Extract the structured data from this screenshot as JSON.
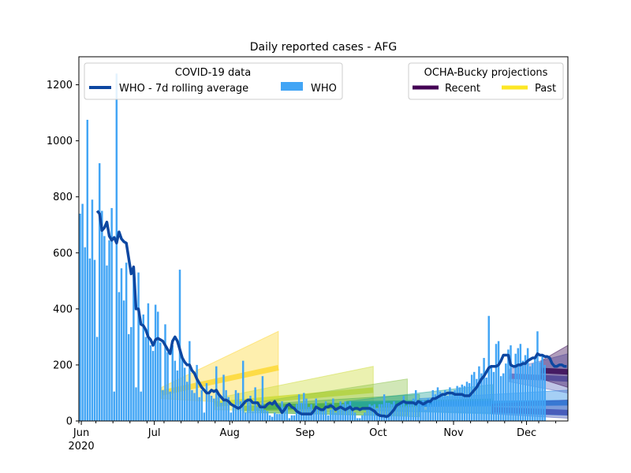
{
  "chart_data": {
    "type": "bar",
    "title": "Daily reported cases - AFG",
    "xlabel": "",
    "ylabel": "",
    "ylim": [
      0,
      1300
    ],
    "yticks": [
      0,
      200,
      400,
      600,
      800,
      1000,
      1200
    ],
    "xlim": [
      "2020-05-31",
      "2020-12-18"
    ],
    "xticks": [
      {
        "date": "2020-06-01",
        "label": "Jun",
        "sublabel": "2020"
      },
      {
        "date": "2020-07-01",
        "label": "Jul",
        "sublabel": ""
      },
      {
        "date": "2020-08-01",
        "label": "Aug",
        "sublabel": ""
      },
      {
        "date": "2020-09-01",
        "label": "Sep",
        "sublabel": ""
      },
      {
        "date": "2020-10-01",
        "label": "Oct",
        "sublabel": ""
      },
      {
        "date": "2020-11-01",
        "label": "Nov",
        "sublabel": ""
      },
      {
        "date": "2020-12-01",
        "label": "Dec",
        "sublabel": ""
      }
    ],
    "legend_data": {
      "title": "COVID-19 data",
      "items": [
        "WHO - 7d rolling average",
        "WHO"
      ],
      "placement": "upper left"
    },
    "legend_projections": {
      "title": "OCHA-Bucky projections",
      "items": [
        "Recent",
        "Past"
      ],
      "placement": "upper right"
    },
    "start_date": "2020-05-31",
    "bars": {
      "name": "WHO",
      "color": "#42a5f5",
      "values": [
        740,
        775,
        620,
        1075,
        580,
        790,
        575,
        300,
        920,
        750,
        660,
        555,
        645,
        760,
        105,
        1240,
        460,
        545,
        430,
        565,
        310,
        335,
        540,
        120,
        530,
        105,
        380,
        300,
        420,
        270,
        250,
        415,
        390,
        280,
        110,
        345,
        245,
        105,
        270,
        215,
        180,
        540,
        230,
        190,
        140,
        285,
        110,
        100,
        200,
        85,
        110,
        30,
        135,
        95,
        90,
        80,
        195,
        95,
        65,
        165,
        110,
        85,
        30,
        50,
        110,
        100,
        70,
        215,
        30,
        80,
        90,
        35,
        120,
        50,
        45,
        160,
        40,
        35,
        20,
        15,
        30,
        25,
        25,
        70,
        50,
        50,
        10,
        20,
        20,
        60,
        95,
        65,
        100,
        80,
        50,
        60,
        40,
        80,
        45,
        40,
        45,
        70,
        20,
        40,
        80,
        30,
        50,
        70,
        60,
        70,
        60,
        70,
        50,
        30,
        10,
        10,
        20,
        30,
        40,
        60,
        55,
        60,
        45,
        60,
        60,
        95,
        65,
        65,
        60,
        70,
        50,
        60,
        60,
        90,
        55,
        65,
        60,
        80,
        110,
        65,
        60,
        75,
        40,
        80,
        60,
        110,
        95,
        120,
        105,
        100,
        110,
        90,
        120,
        95,
        110,
        125,
        120,
        130,
        125,
        140,
        135,
        165,
        175,
        150,
        195,
        170,
        225,
        155,
        375,
        195,
        175,
        275,
        285,
        160,
        170,
        205,
        255,
        270,
        150,
        240,
        260,
        275,
        215,
        235,
        260,
        195,
        205,
        225,
        320,
        210,
        230,
        200
      ]
    },
    "rolling_avg": {
      "name": "WHO - 7d rolling average",
      "color": "#0d47a1",
      "points": [
        [
          7,
          750
        ],
        [
          8,
          740
        ],
        [
          9,
          680
        ],
        [
          10,
          690
        ],
        [
          11,
          710
        ],
        [
          12,
          660
        ],
        [
          13,
          645
        ],
        [
          14,
          655
        ],
        [
          15,
          635
        ],
        [
          16,
          675
        ],
        [
          17,
          650
        ],
        [
          18,
          640
        ],
        [
          19,
          635
        ],
        [
          20,
          580
        ],
        [
          21,
          525
        ],
        [
          22,
          550
        ],
        [
          23,
          400
        ],
        [
          24,
          400
        ],
        [
          25,
          345
        ],
        [
          26,
          340
        ],
        [
          27,
          325
        ],
        [
          28,
          300
        ],
        [
          29,
          290
        ],
        [
          30,
          270
        ],
        [
          31,
          290
        ],
        [
          32,
          295
        ],
        [
          33,
          290
        ],
        [
          34,
          285
        ],
        [
          35,
          270
        ],
        [
          36,
          255
        ],
        [
          37,
          240
        ],
        [
          38,
          285
        ],
        [
          39,
          300
        ],
        [
          40,
          285
        ],
        [
          41,
          255
        ],
        [
          42,
          225
        ],
        [
          43,
          210
        ],
        [
          44,
          200
        ],
        [
          45,
          200
        ],
        [
          46,
          180
        ],
        [
          47,
          170
        ],
        [
          48,
          150
        ],
        [
          49,
          135
        ],
        [
          50,
          120
        ],
        [
          51,
          110
        ],
        [
          52,
          100
        ],
        [
          53,
          100
        ],
        [
          54,
          110
        ],
        [
          55,
          105
        ],
        [
          56,
          110
        ],
        [
          57,
          95
        ],
        [
          58,
          85
        ],
        [
          59,
          75
        ],
        [
          60,
          75
        ],
        [
          61,
          70
        ],
        [
          62,
          60
        ],
        [
          63,
          55
        ],
        [
          64,
          50
        ],
        [
          65,
          45
        ],
        [
          66,
          50
        ],
        [
          67,
          60
        ],
        [
          68,
          70
        ],
        [
          69,
          75
        ],
        [
          70,
          75
        ],
        [
          71,
          65
        ],
        [
          72,
          65
        ],
        [
          73,
          65
        ],
        [
          74,
          50
        ],
        [
          75,
          50
        ],
        [
          76,
          50
        ],
        [
          77,
          60
        ],
        [
          78,
          65
        ],
        [
          79,
          60
        ],
        [
          80,
          70
        ],
        [
          81,
          55
        ],
        [
          82,
          45
        ],
        [
          83,
          30
        ],
        [
          84,
          40
        ],
        [
          85,
          55
        ],
        [
          86,
          60
        ],
        [
          87,
          50
        ],
        [
          88,
          45
        ],
        [
          89,
          35
        ],
        [
          90,
          30
        ],
        [
          91,
          25
        ],
        [
          92,
          25
        ],
        [
          93,
          25
        ],
        [
          94,
          25
        ],
        [
          95,
          25
        ],
        [
          96,
          35
        ],
        [
          97,
          50
        ],
        [
          98,
          45
        ],
        [
          99,
          40
        ],
        [
          100,
          40
        ],
        [
          101,
          50
        ],
        [
          102,
          50
        ],
        [
          103,
          55
        ],
        [
          104,
          50
        ],
        [
          105,
          40
        ],
        [
          106,
          45
        ],
        [
          107,
          50
        ],
        [
          108,
          45
        ],
        [
          109,
          40
        ],
        [
          110,
          45
        ],
        [
          111,
          50
        ],
        [
          112,
          40
        ],
        [
          113,
          45
        ],
        [
          114,
          45
        ],
        [
          115,
          40
        ],
        [
          116,
          45
        ],
        [
          117,
          45
        ],
        [
          118,
          45
        ],
        [
          119,
          45
        ],
        [
          120,
          40
        ],
        [
          121,
          35
        ],
        [
          122,
          25
        ],
        [
          123,
          20
        ],
        [
          124,
          18
        ],
        [
          125,
          18
        ],
        [
          126,
          15
        ],
        [
          127,
          20
        ],
        [
          128,
          30
        ],
        [
          129,
          40
        ],
        [
          130,
          55
        ],
        [
          131,
          60
        ],
        [
          132,
          65
        ],
        [
          133,
          70
        ],
        [
          134,
          65
        ],
        [
          135,
          65
        ],
        [
          136,
          65
        ],
        [
          137,
          65
        ],
        [
          138,
          60
        ],
        [
          139,
          70
        ],
        [
          140,
          65
        ],
        [
          141,
          60
        ],
        [
          142,
          65
        ],
        [
          143,
          70
        ],
        [
          144,
          70
        ],
        [
          145,
          80
        ],
        [
          146,
          80
        ],
        [
          147,
          85
        ],
        [
          148,
          90
        ],
        [
          149,
          95
        ],
        [
          150,
          95
        ],
        [
          151,
          100
        ],
        [
          152,
          100
        ],
        [
          153,
          100
        ],
        [
          154,
          95
        ],
        [
          155,
          95
        ],
        [
          156,
          95
        ],
        [
          157,
          95
        ],
        [
          158,
          90
        ],
        [
          159,
          90
        ],
        [
          160,
          90
        ],
        [
          161,
          100
        ],
        [
          162,
          110
        ],
        [
          163,
          120
        ],
        [
          164,
          135
        ],
        [
          165,
          150
        ],
        [
          166,
          160
        ],
        [
          167,
          175
        ],
        [
          168,
          190
        ],
        [
          169,
          195
        ],
        [
          170,
          195
        ],
        [
          171,
          195
        ],
        [
          172,
          200
        ],
        [
          173,
          215
        ],
        [
          174,
          235
        ],
        [
          175,
          235
        ],
        [
          176,
          235
        ],
        [
          177,
          200
        ],
        [
          178,
          195
        ],
        [
          179,
          195
        ],
        [
          180,
          200
        ],
        [
          181,
          200
        ],
        [
          182,
          205
        ],
        [
          183,
          205
        ],
        [
          184,
          215
        ],
        [
          185,
          220
        ],
        [
          186,
          225
        ],
        [
          187,
          225
        ],
        [
          188,
          240
        ],
        [
          189,
          235
        ],
        [
          190,
          235
        ],
        [
          191,
          230
        ],
        [
          192,
          230
        ],
        [
          193,
          225
        ],
        [
          194,
          205
        ],
        [
          195,
          195
        ],
        [
          196,
          195
        ],
        [
          197,
          200
        ],
        [
          198,
          200
        ],
        [
          199,
          195
        ],
        [
          200,
          195
        ]
      ]
    },
    "projections": [
      {
        "color": "#fdd835",
        "start": 34,
        "end": 82,
        "median": [
          100,
          190
        ],
        "upper": [
          120,
          320
        ],
        "lower": [
          80,
          55
        ]
      },
      {
        "color": "#cddc39",
        "start": 56,
        "end": 121,
        "median": [
          60,
          110
        ],
        "upper": [
          80,
          195
        ],
        "lower": [
          40,
          30
        ]
      },
      {
        "color": "#8bc34a",
        "start": 68,
        "end": 135,
        "median": [
          45,
          60
        ],
        "upper": [
          60,
          150
        ],
        "lower": [
          30,
          20
        ]
      },
      {
        "color": "#4caf50",
        "start": 75,
        "end": 140,
        "median": [
          50,
          60
        ],
        "upper": [
          60,
          95
        ],
        "lower": [
          30,
          15
        ]
      },
      {
        "color": "#26a69a",
        "start": 110,
        "end": 170,
        "median": [
          60,
          70
        ],
        "upper": [
          70,
          130
        ],
        "lower": [
          40,
          25
        ]
      },
      {
        "color": "#1e88e5",
        "start": 140,
        "end": 201,
        "median": [
          60,
          65
        ],
        "upper": [
          80,
          110
        ],
        "lower": [
          35,
          20
        ]
      },
      {
        "color": "#3f51b5",
        "start": 170,
        "end": 201,
        "median": [
          40,
          30
        ],
        "upper": [
          60,
          75
        ],
        "lower": [
          25,
          10
        ]
      },
      {
        "color": "#5c6bc0",
        "start": 177,
        "end": 201,
        "median": [
          160,
          150
        ],
        "upper": [
          185,
          240
        ],
        "lower": [
          140,
          100
        ]
      },
      {
        "color": "#3a0a55",
        "start": 190,
        "end": 201,
        "median": [
          180,
          175
        ],
        "upper": [
          215,
          270
        ],
        "lower": [
          150,
          120
        ]
      }
    ]
  }
}
